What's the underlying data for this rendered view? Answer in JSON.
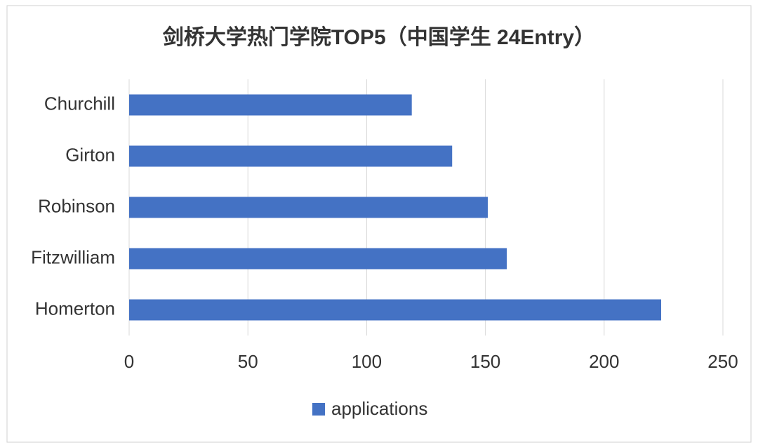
{
  "chart_data": {
    "type": "bar",
    "orientation": "horizontal",
    "title": "剑桥大学热门学院TOP5（中国学生 24Entry）",
    "categories": [
      "Churchill",
      "Girton",
      "Robinson",
      "Fitzwilliam",
      "Homerton"
    ],
    "series": [
      {
        "name": "applications",
        "color": "#4472c4",
        "values": [
          119,
          136,
          151,
          159,
          224
        ]
      }
    ],
    "xlim": [
      0,
      250
    ],
    "xticks": [
      0,
      50,
      100,
      150,
      200,
      250
    ],
    "grid": true,
    "legend": "bottom"
  }
}
